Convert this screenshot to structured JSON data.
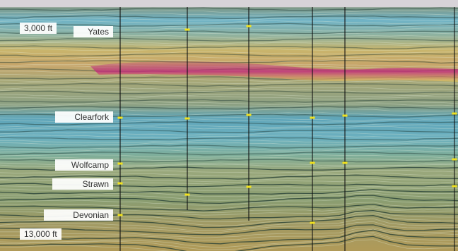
{
  "depth_labels": {
    "top": "3,000 ft",
    "bottom": "13,000 ft"
  },
  "formations": [
    {
      "id": "yates",
      "name": "Yates"
    },
    {
      "id": "clearfork",
      "name": "Clearfork"
    },
    {
      "id": "wolfcamp",
      "name": "Wolfcamp"
    },
    {
      "id": "strawn",
      "name": "Strawn"
    },
    {
      "id": "devonian",
      "name": "Devonian"
    }
  ],
  "wells": [
    {
      "id": "well-1"
    },
    {
      "id": "well-2"
    },
    {
      "id": "well-3"
    },
    {
      "id": "well-4"
    },
    {
      "id": "well-5"
    },
    {
      "id": "well-6"
    }
  ],
  "colors": {
    "top_band": "#d7d3d8",
    "marker": "#f2e21d",
    "well_line": "#111111",
    "anomaly": "#c0307a"
  }
}
